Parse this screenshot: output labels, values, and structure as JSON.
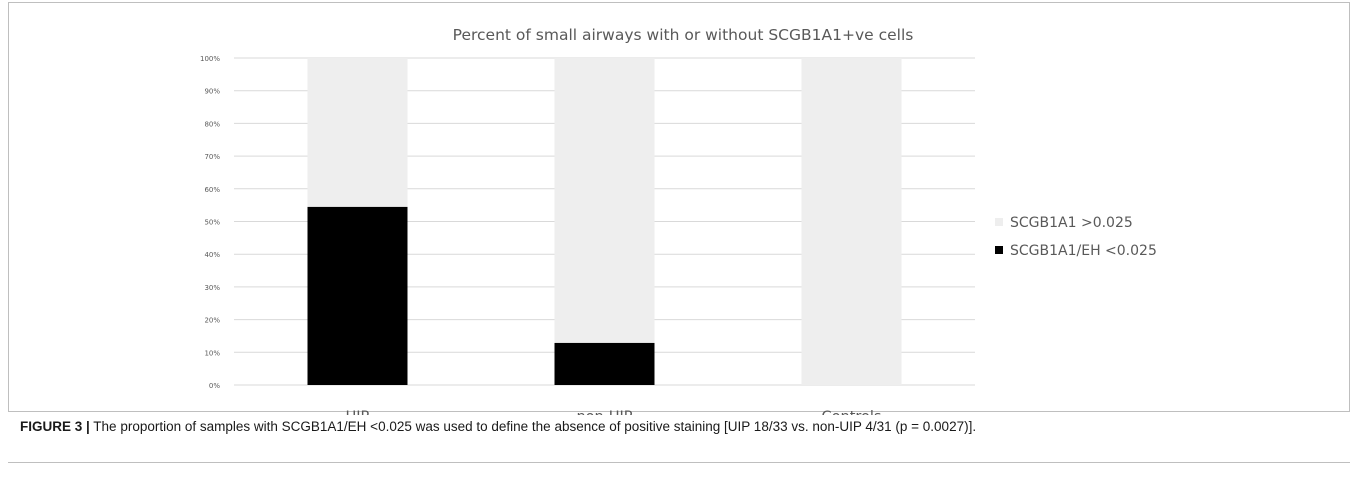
{
  "figure": {
    "caption_label": "FIGURE 3 |",
    "caption_text": " The proportion of samples with SCGB1A1/EH <0.025 was used to define the absence of positive staining [UIP 18/33 vs. non-UIP 4/31 (p = 0.0027)]."
  },
  "chart_data": {
    "type": "bar",
    "stacked": true,
    "title": "Percent of small airways with or without SCGB1A1+ve cells",
    "xlabel": "",
    "ylabel": "",
    "categories": [
      "UIP",
      "non-UIP",
      "Controls"
    ],
    "series": [
      {
        "name": "SCGB1A1/EH <0.025",
        "values": [
          54.5,
          12.9,
          0
        ],
        "color": "#000000"
      },
      {
        "name": "SCGB1A1 >0.025",
        "values": [
          45.5,
          87.1,
          100
        ],
        "color": "#eeeeee"
      }
    ],
    "ylim": [
      0,
      100
    ],
    "y_ticks": [
      "0%",
      "10%",
      "20%",
      "30%",
      "40%",
      "50%",
      "60%",
      "70%",
      "80%",
      "90%",
      "100%"
    ],
    "legend_position": "right",
    "legend_order": [
      "SCGB1A1 >0.025",
      "SCGB1A1/EH <0.025"
    ],
    "grid": true,
    "gridline_color": "#d9d9d9"
  }
}
